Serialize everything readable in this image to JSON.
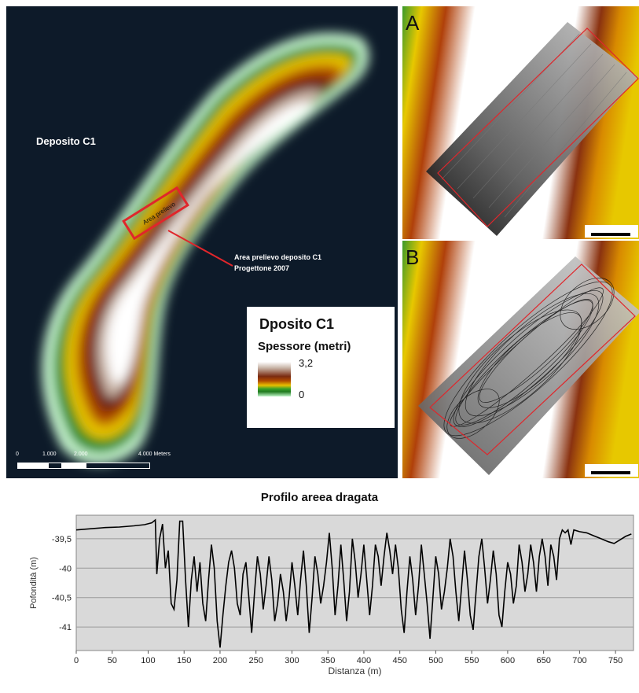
{
  "map": {
    "title": "Deposito C1",
    "annotation_line1": "Area prelievo deposito C1",
    "annotation_line2": "Progettone 2007",
    "box_label": "Area prelievo",
    "legend": {
      "title": "Dposito  C1",
      "subtitle": "Spessore (metri)",
      "max": "3,2",
      "min": "0"
    },
    "scale": {
      "labels": [
        "0",
        "1.000",
        "2.000",
        "4.000 Meters"
      ]
    }
  },
  "panels": {
    "a_label": "A",
    "b_label": "B"
  },
  "colors": {
    "map_background": "#0d1a29",
    "outline_red": "#e0262b",
    "chart_background": "#d9d9d9"
  },
  "chart_data": {
    "type": "line",
    "title": "Profilo  areea dragata",
    "xlabel": "Distanza (m)",
    "ylabel": "Pofondità (m)",
    "xlim": [
      0,
      775
    ],
    "ylim": [
      -41.4,
      -39.1
    ],
    "x_ticks": [
      0,
      50,
      100,
      150,
      200,
      250,
      300,
      350,
      400,
      450,
      500,
      550,
      600,
      650,
      700,
      750
    ],
    "y_ticks": [
      -39.5,
      -40,
      -40.5,
      -41
    ],
    "y_tick_labels": [
      "-39,5",
      "-40",
      "-40,5",
      "-41"
    ],
    "grid": "horizontal",
    "series": [
      {
        "values": [
          [
            0,
            -39.35
          ],
          [
            20,
            -39.33
          ],
          [
            40,
            -39.31
          ],
          [
            60,
            -39.3
          ],
          [
            80,
            -39.28
          ],
          [
            95,
            -39.26
          ],
          [
            105,
            -39.23
          ],
          [
            110,
            -39.18
          ],
          [
            112,
            -40.1
          ],
          [
            116,
            -39.5
          ],
          [
            120,
            -39.25
          ],
          [
            124,
            -40.0
          ],
          [
            128,
            -39.7
          ],
          [
            132,
            -40.6
          ],
          [
            136,
            -40.7
          ],
          [
            140,
            -40.2
          ],
          [
            144,
            -39.2
          ],
          [
            148,
            -39.2
          ],
          [
            152,
            -40.2
          ],
          [
            156,
            -41.0
          ],
          [
            160,
            -40.2
          ],
          [
            164,
            -39.8
          ],
          [
            168,
            -40.4
          ],
          [
            172,
            -39.9
          ],
          [
            176,
            -40.6
          ],
          [
            180,
            -40.9
          ],
          [
            184,
            -40.2
          ],
          [
            188,
            -39.6
          ],
          [
            192,
            -40.0
          ],
          [
            196,
            -40.9
          ],
          [
            200,
            -41.35
          ],
          [
            204,
            -40.8
          ],
          [
            208,
            -40.3
          ],
          [
            212,
            -39.9
          ],
          [
            216,
            -39.7
          ],
          [
            220,
            -40.0
          ],
          [
            224,
            -40.6
          ],
          [
            228,
            -40.8
          ],
          [
            232,
            -40.1
          ],
          [
            236,
            -39.9
          ],
          [
            240,
            -40.5
          ],
          [
            244,
            -41.1
          ],
          [
            248,
            -40.4
          ],
          [
            252,
            -39.8
          ],
          [
            256,
            -40.1
          ],
          [
            260,
            -40.7
          ],
          [
            264,
            -40.3
          ],
          [
            268,
            -39.8
          ],
          [
            272,
            -40.2
          ],
          [
            276,
            -40.9
          ],
          [
            280,
            -40.6
          ],
          [
            284,
            -40.1
          ],
          [
            288,
            -40.4
          ],
          [
            292,
            -40.9
          ],
          [
            296,
            -40.5
          ],
          [
            300,
            -39.9
          ],
          [
            304,
            -40.3
          ],
          [
            308,
            -40.8
          ],
          [
            312,
            -40.2
          ],
          [
            316,
            -39.7
          ],
          [
            320,
            -40.3
          ],
          [
            324,
            -41.1
          ],
          [
            328,
            -40.5
          ],
          [
            332,
            -39.8
          ],
          [
            336,
            -40.1
          ],
          [
            340,
            -40.6
          ],
          [
            344,
            -40.3
          ],
          [
            348,
            -39.9
          ],
          [
            352,
            -39.4
          ],
          [
            356,
            -40.0
          ],
          [
            360,
            -40.8
          ],
          [
            364,
            -40.3
          ],
          [
            368,
            -39.6
          ],
          [
            372,
            -40.2
          ],
          [
            376,
            -40.9
          ],
          [
            380,
            -40.4
          ],
          [
            384,
            -39.5
          ],
          [
            388,
            -39.9
          ],
          [
            392,
            -40.5
          ],
          [
            396,
            -40.1
          ],
          [
            400,
            -39.6
          ],
          [
            404,
            -40.2
          ],
          [
            408,
            -40.8
          ],
          [
            412,
            -40.3
          ],
          [
            416,
            -39.6
          ],
          [
            420,
            -39.8
          ],
          [
            424,
            -40.3
          ],
          [
            428,
            -39.8
          ],
          [
            432,
            -39.4
          ],
          [
            436,
            -39.7
          ],
          [
            440,
            -40.1
          ],
          [
            444,
            -39.6
          ],
          [
            448,
            -40.0
          ],
          [
            452,
            -40.7
          ],
          [
            456,
            -41.1
          ],
          [
            460,
            -40.4
          ],
          [
            464,
            -39.8
          ],
          [
            468,
            -40.2
          ],
          [
            472,
            -40.8
          ],
          [
            476,
            -40.3
          ],
          [
            480,
            -39.6
          ],
          [
            484,
            -40.1
          ],
          [
            488,
            -40.6
          ],
          [
            492,
            -41.2
          ],
          [
            496,
            -40.5
          ],
          [
            500,
            -39.8
          ],
          [
            504,
            -40.1
          ],
          [
            508,
            -40.7
          ],
          [
            512,
            -40.4
          ],
          [
            516,
            -40.0
          ],
          [
            520,
            -39.5
          ],
          [
            524,
            -39.8
          ],
          [
            528,
            -40.4
          ],
          [
            532,
            -40.9
          ],
          [
            536,
            -40.3
          ],
          [
            540,
            -39.7
          ],
          [
            544,
            -40.2
          ],
          [
            548,
            -40.8
          ],
          [
            552,
            -41.05
          ],
          [
            556,
            -40.4
          ],
          [
            560,
            -39.8
          ],
          [
            564,
            -39.5
          ],
          [
            568,
            -40.0
          ],
          [
            572,
            -40.6
          ],
          [
            576,
            -40.2
          ],
          [
            580,
            -39.7
          ],
          [
            584,
            -40.1
          ],
          [
            588,
            -40.8
          ],
          [
            592,
            -41.0
          ],
          [
            596,
            -40.4
          ],
          [
            600,
            -39.9
          ],
          [
            604,
            -40.1
          ],
          [
            608,
            -40.6
          ],
          [
            612,
            -40.3
          ],
          [
            616,
            -39.6
          ],
          [
            620,
            -39.9
          ],
          [
            624,
            -40.4
          ],
          [
            628,
            -40.1
          ],
          [
            632,
            -39.6
          ],
          [
            636,
            -39.9
          ],
          [
            640,
            -40.4
          ],
          [
            644,
            -39.8
          ],
          [
            648,
            -39.5
          ],
          [
            652,
            -39.8
          ],
          [
            656,
            -40.3
          ],
          [
            660,
            -39.6
          ],
          [
            664,
            -39.8
          ],
          [
            668,
            -40.2
          ],
          [
            672,
            -39.5
          ],
          [
            676,
            -39.35
          ],
          [
            680,
            -39.4
          ],
          [
            684,
            -39.35
          ],
          [
            688,
            -39.6
          ],
          [
            692,
            -39.35
          ],
          [
            700,
            -39.38
          ],
          [
            710,
            -39.4
          ],
          [
            720,
            -39.45
          ],
          [
            730,
            -39.5
          ],
          [
            740,
            -39.55
          ],
          [
            748,
            -39.58
          ],
          [
            756,
            -39.52
          ],
          [
            764,
            -39.46
          ],
          [
            772,
            -39.42
          ]
        ]
      }
    ]
  }
}
